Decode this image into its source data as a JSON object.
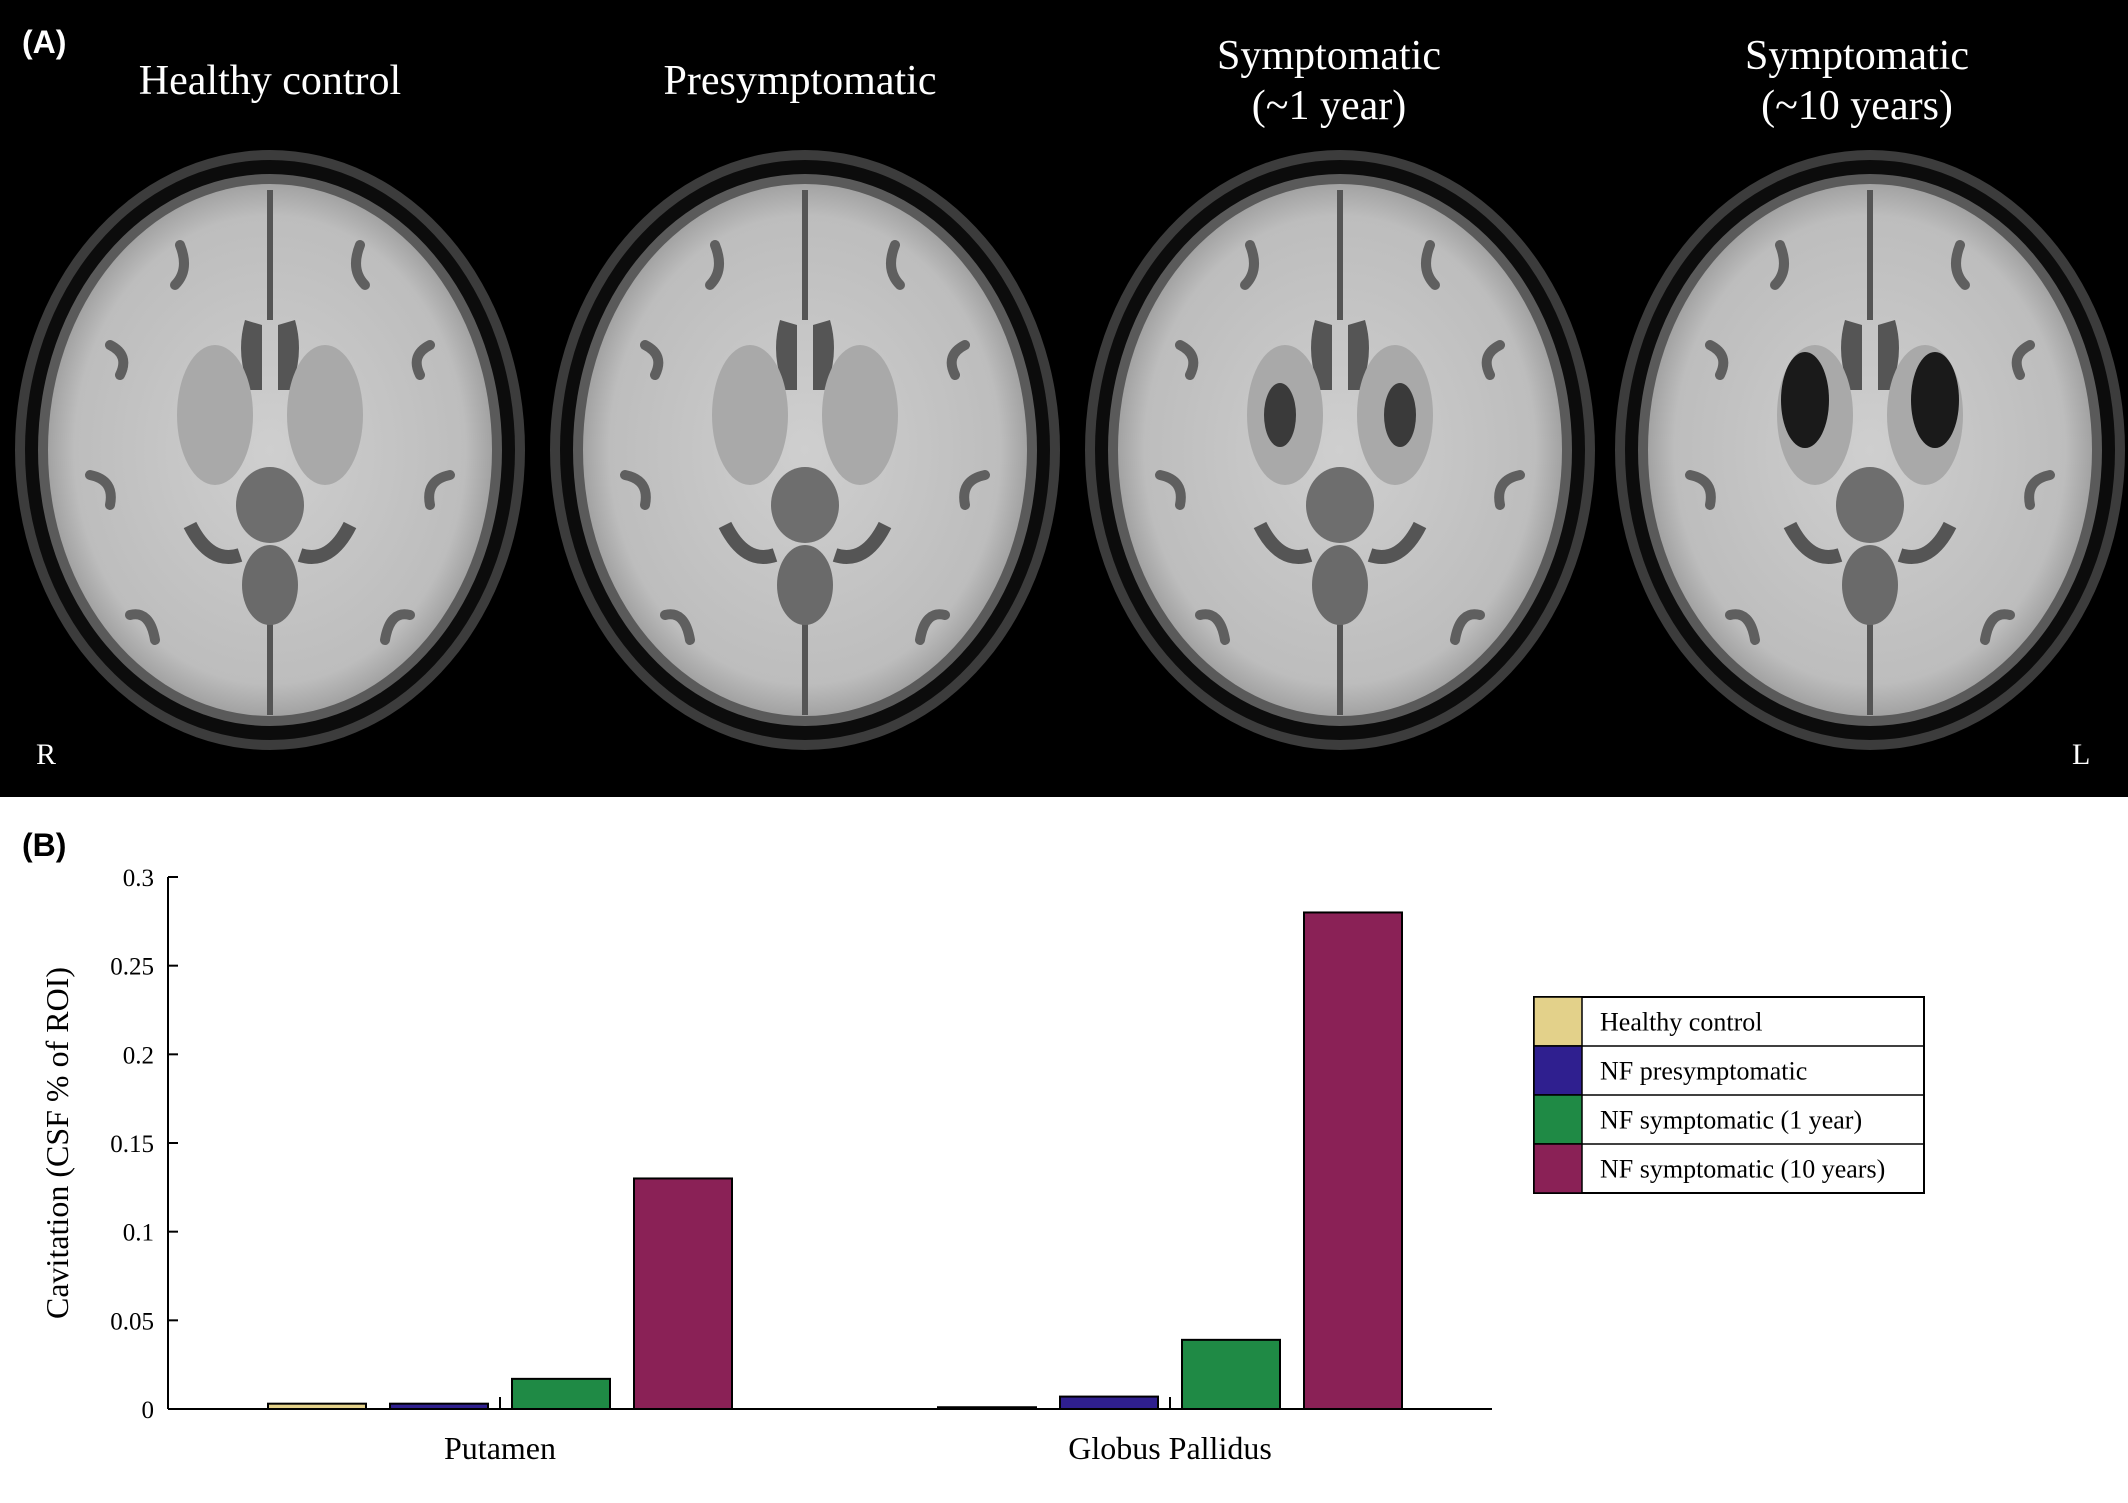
{
  "panel_a": {
    "label": "(A)",
    "titles": [
      {
        "line1": "Healthy control",
        "line2": ""
      },
      {
        "line1": "Presymptomatic",
        "line2": ""
      },
      {
        "line1": "Symptomatic",
        "line2": "(~1 year)"
      },
      {
        "line1": "Symptomatic",
        "line2": "(~10 years)"
      }
    ],
    "orientation_left": "R",
    "orientation_right": "L"
  },
  "panel_b": {
    "label": "(B)"
  },
  "chart_data": {
    "type": "bar",
    "categories": [
      "Putamen",
      "Globus Pallidus"
    ],
    "series": [
      {
        "name": "Healthy control",
        "color": "#e3d18a",
        "values": [
          0.003,
          0.001
        ]
      },
      {
        "name": "NF presymptomatic",
        "color": "#2f1f8f",
        "values": [
          0.003,
          0.007
        ]
      },
      {
        "name": "NF symptomatic (1 year)",
        "color": "#1f8a45",
        "values": [
          0.017,
          0.039
        ]
      },
      {
        "name": "NF symptomatic (10 years)",
        "color": "#8a2156",
        "values": [
          0.13,
          0.28
        ]
      }
    ],
    "ylabel": "Cavitation (CSF % of ROI)",
    "xlabel": "",
    "ylim": [
      0,
      0.3
    ],
    "yticks": [
      "0",
      "0.05",
      "0.1",
      "0.15",
      "0.2",
      "0.25",
      "0.3"
    ],
    "grid": false,
    "legend_position": "right"
  }
}
